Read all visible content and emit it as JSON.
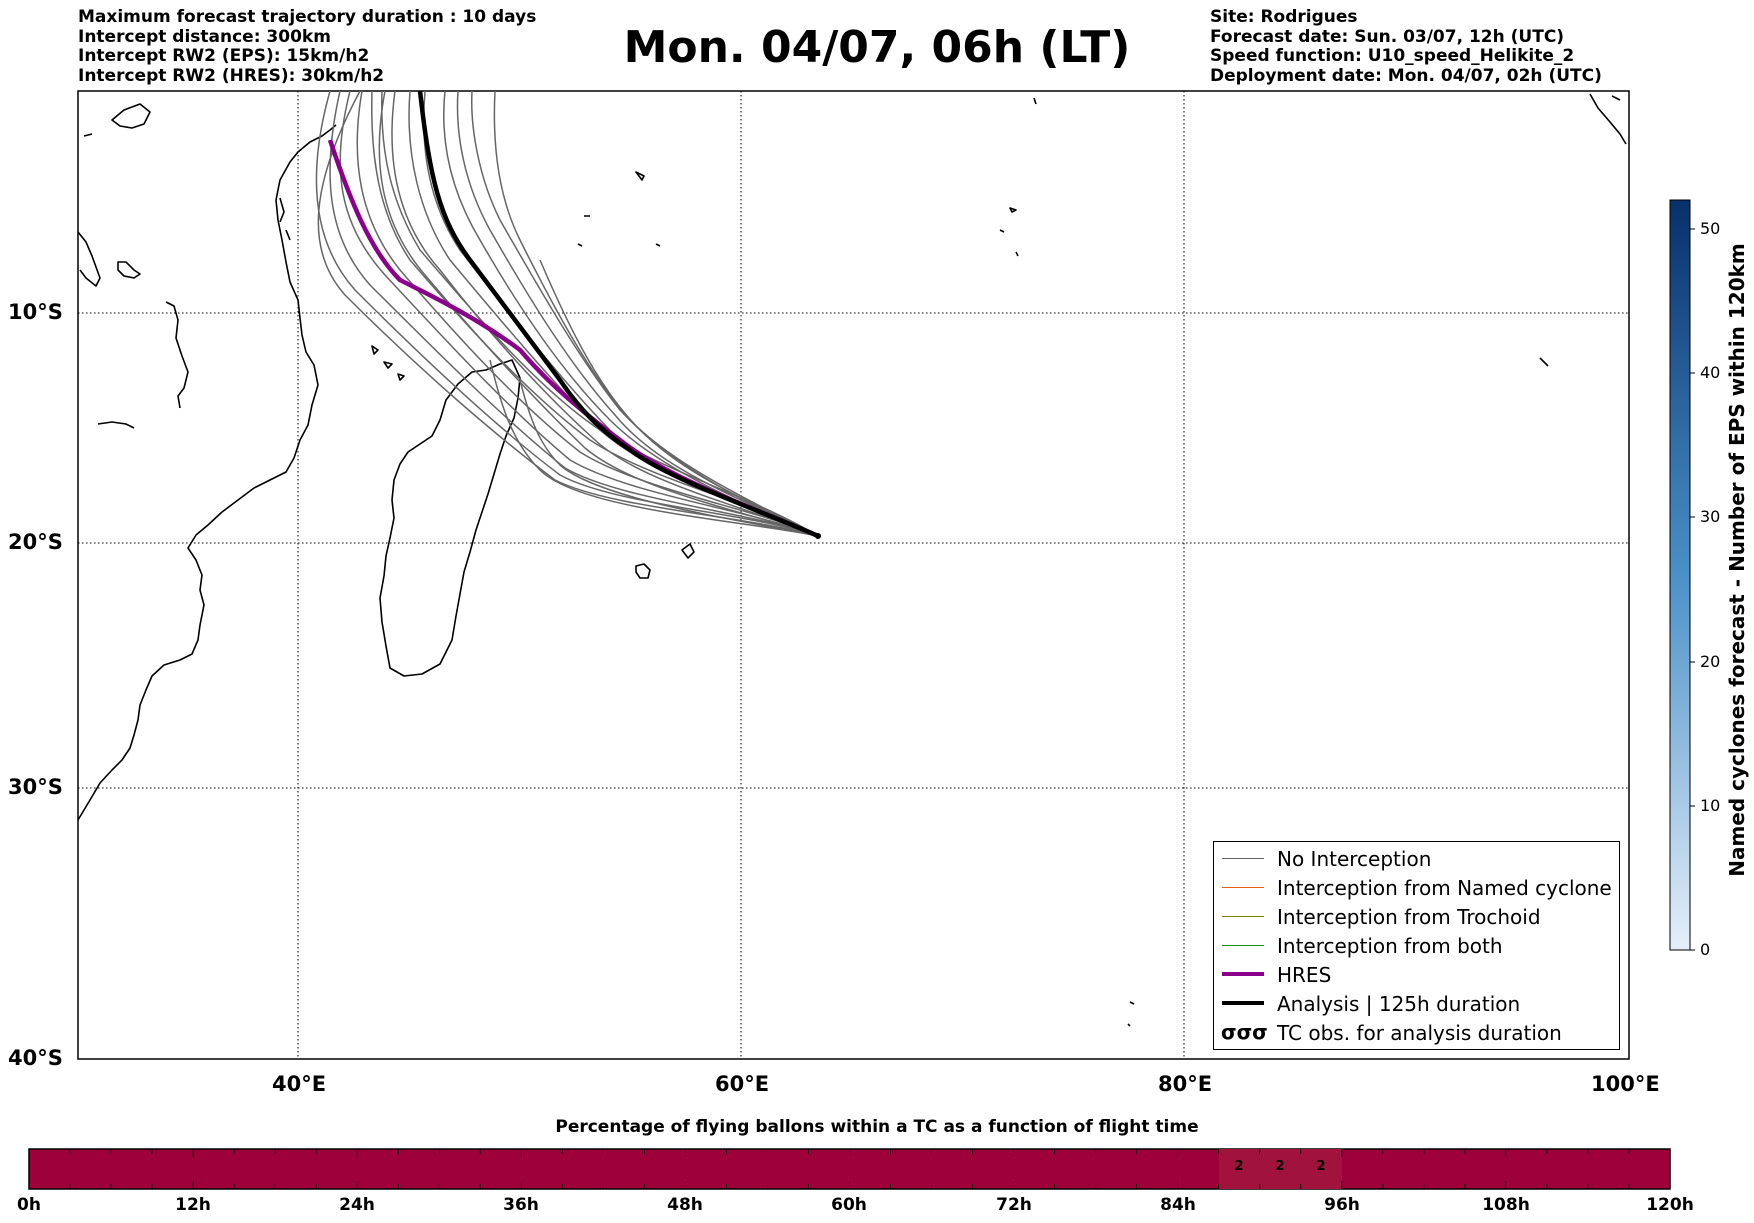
{
  "header": {
    "left_lines": [
      "Maximum forecast trajectory duration : 10 days",
      "Intercept distance: 300km",
      "Intercept RW2 (EPS):  15km/h2",
      "Intercept RW2 (HRES): 30km/h2"
    ],
    "title": "Mon. 04/07, 06h (LT)",
    "right_lines": [
      "Site: Rodrigues",
      "Forecast date: Sun. 03/07, 12h (UTC)",
      "Speed function: U10_speed_Helikite_2",
      "Deployment date: Mon. 04/07, 02h (UTC)"
    ]
  },
  "map": {
    "lon_ticks": [
      "40°E",
      "60°E",
      "80°E",
      "100°E"
    ],
    "lat_ticks": [
      "10°S",
      "20°S",
      "30°S",
      "40°S"
    ],
    "lon_range": [
      30,
      100
    ],
    "lat_range": [
      -40,
      1
    ],
    "launch_site": {
      "lon": 63.4,
      "lat": -19.7
    },
    "colors": {
      "no_interception": "#666666",
      "named_cyclone": "#e8601c",
      "trochoid": "#808000",
      "both": "#1a8a1a",
      "hres": "#8b008b",
      "analysis": "#000000"
    }
  },
  "legend": {
    "items": [
      {
        "label": "No Interception",
        "color": "#666666",
        "width": 1
      },
      {
        "label": "Interception from Named cyclone",
        "color": "#e8601c",
        "width": 1
      },
      {
        "label": "Interception from Trochoid",
        "color": "#808000",
        "width": 1
      },
      {
        "label": "Interception from both",
        "color": "#1a8a1a",
        "width": 1
      },
      {
        "label": "HRES",
        "color": "#8b008b",
        "width": 4
      },
      {
        "label": "Analysis | 125h duration",
        "color": "#000000",
        "width": 4
      }
    ],
    "tc_obs_glyph": "σσσ",
    "tc_obs_label": "TC obs. for analysis duration"
  },
  "colorbar": {
    "title": "Named cyclones forecast - Number of EPS within 120km",
    "ticks": [
      "0",
      "10",
      "20",
      "30",
      "40",
      "50"
    ],
    "range": [
      0,
      52
    ],
    "color_low": "#e6eff9",
    "color_high": "#08306b"
  },
  "bottom_chart": {
    "title": "Percentage of flying ballons within a TC as a function of flight time",
    "time_labels": [
      "0h",
      "12h",
      "24h",
      "36h",
      "48h",
      "60h",
      "72h",
      "84h",
      "96h",
      "108h",
      "120h"
    ],
    "bar_color": "#9e003a",
    "highlight_color": "#a1123c",
    "highlighted_bins": [
      {
        "start_h": 87,
        "end_h": 90,
        "value": "2"
      },
      {
        "start_h": 90,
        "end_h": 93,
        "value": "2"
      },
      {
        "start_h": 93,
        "end_h": 96,
        "value": "2"
      }
    ]
  }
}
